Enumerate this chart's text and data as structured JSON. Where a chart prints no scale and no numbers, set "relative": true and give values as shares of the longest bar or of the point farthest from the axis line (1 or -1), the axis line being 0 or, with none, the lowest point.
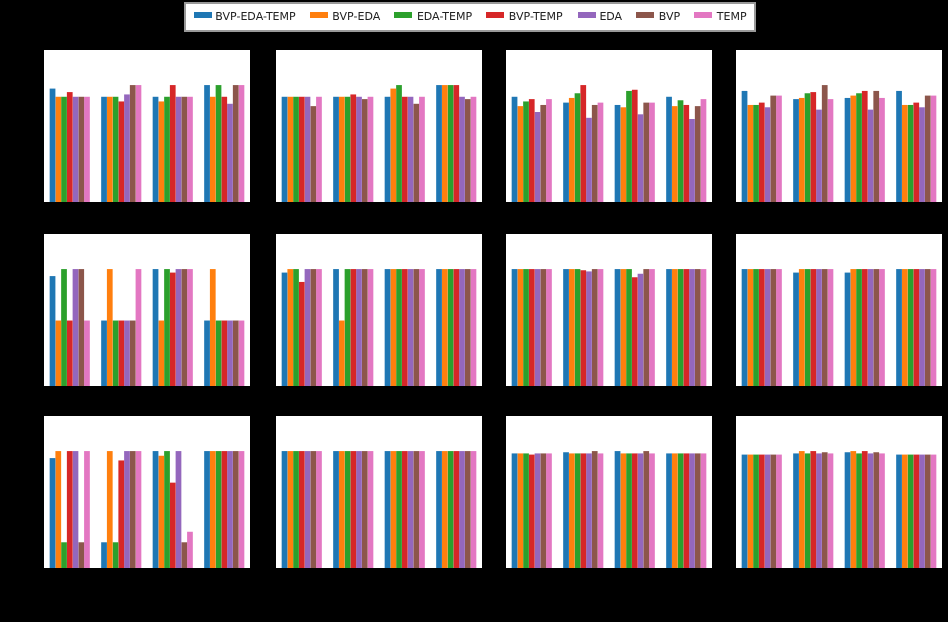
{
  "chart_data": [
    {
      "type": "bar",
      "relative": true,
      "legend": "top",
      "categories": [
        null,
        null,
        null,
        null
      ],
      "series": [
        {
          "name": "BVP-EDA-TEMP",
          "color": "#1f77b4",
          "values": [
            0.97,
            0.9,
            0.9,
            1
          ]
        },
        {
          "name": "BVP-EDA",
          "color": "#ff7f0e",
          "values": [
            0.9,
            0.9,
            0.86,
            0.9
          ]
        },
        {
          "name": "EDA-TEMP",
          "color": "#2ca02c",
          "values": [
            0.9,
            0.9,
            0.9,
            1
          ]
        },
        {
          "name": "BVP-TEMP",
          "color": "#d62728",
          "values": [
            0.94,
            0.86,
            1,
            0.9
          ]
        },
        {
          "name": "EDA",
          "color": "#9467bd",
          "values": [
            0.9,
            0.92,
            0.9,
            0.84
          ]
        },
        {
          "name": "BVP",
          "color": "#8c564b",
          "values": [
            0.9,
            1,
            0.9,
            1
          ]
        },
        {
          "name": "TEMP",
          "color": "#e377c2",
          "values": [
            0.9,
            1,
            0.9,
            1
          ]
        }
      ]
    },
    {
      "type": "bar",
      "relative": true,
      "categories": [
        null,
        null,
        null,
        null
      ],
      "series": [
        {
          "color": "#1f77b4",
          "values": [
            0.9,
            0.9,
            0.9,
            1
          ]
        },
        {
          "color": "#ff7f0e",
          "values": [
            0.9,
            0.9,
            0.97,
            1
          ]
        },
        {
          "color": "#2ca02c",
          "values": [
            0.9,
            0.9,
            1,
            1
          ]
        },
        {
          "color": "#d62728",
          "values": [
            0.9,
            0.92,
            0.9,
            1
          ]
        },
        {
          "color": "#9467bd",
          "values": [
            0.9,
            0.9,
            0.9,
            0.9
          ]
        },
        {
          "color": "#8c564b",
          "values": [
            0.82,
            0.88,
            0.84,
            0.88
          ]
        },
        {
          "color": "#e377c2",
          "values": [
            0.9,
            0.9,
            0.9,
            0.9
          ]
        }
      ]
    },
    {
      "type": "bar",
      "relative": true,
      "categories": [
        null,
        null,
        null,
        null
      ],
      "series": [
        {
          "color": "#1f77b4",
          "values": [
            0.9,
            0.85,
            0.83,
            0.9
          ]
        },
        {
          "color": "#ff7f0e",
          "values": [
            0.82,
            0.89,
            0.81,
            0.82
          ]
        },
        {
          "color": "#2ca02c",
          "values": [
            0.86,
            0.93,
            0.95,
            0.87
          ]
        },
        {
          "color": "#d62728",
          "values": [
            0.88,
            1,
            0.96,
            0.83
          ]
        },
        {
          "color": "#9467bd",
          "values": [
            0.77,
            0.72,
            0.75,
            0.71
          ]
        },
        {
          "color": "#8c564b",
          "values": [
            0.83,
            0.83,
            0.85,
            0.82
          ]
        },
        {
          "color": "#e377c2",
          "values": [
            0.88,
            0.85,
            0.85,
            0.88
          ]
        }
      ]
    },
    {
      "type": "bar",
      "relative": true,
      "categories": [
        null,
        null,
        null,
        null
      ],
      "series": [
        {
          "color": "#1f77b4",
          "values": [
            0.95,
            0.88,
            0.89,
            0.95
          ]
        },
        {
          "color": "#ff7f0e",
          "values": [
            0.83,
            0.89,
            0.91,
            0.83
          ]
        },
        {
          "color": "#2ca02c",
          "values": [
            0.83,
            0.93,
            0.93,
            0.83
          ]
        },
        {
          "color": "#d62728",
          "values": [
            0.85,
            0.94,
            0.95,
            0.85
          ]
        },
        {
          "color": "#9467bd",
          "values": [
            0.81,
            0.79,
            0.79,
            0.81
          ]
        },
        {
          "color": "#8c564b",
          "values": [
            0.91,
            1,
            0.95,
            0.91
          ]
        },
        {
          "color": "#e377c2",
          "values": [
            0.91,
            0.88,
            0.89,
            0.91
          ]
        }
      ]
    },
    {
      "type": "bar",
      "relative": true,
      "categories": [
        null,
        null,
        null,
        null
      ],
      "series": [
        {
          "color": "#1f77b4",
          "values": [
            0.94,
            0.56,
            1,
            0.56
          ]
        },
        {
          "color": "#ff7f0e",
          "values": [
            0.56,
            1,
            0.56,
            1
          ]
        },
        {
          "color": "#2ca02c",
          "values": [
            1,
            0.56,
            1,
            0.56
          ]
        },
        {
          "color": "#d62728",
          "values": [
            0.56,
            0.56,
            0.97,
            0.56
          ]
        },
        {
          "color": "#9467bd",
          "values": [
            1,
            0.56,
            1,
            0.56
          ]
        },
        {
          "color": "#8c564b",
          "values": [
            1,
            0.56,
            1,
            0.56
          ]
        },
        {
          "color": "#e377c2",
          "values": [
            0.56,
            1,
            1,
            0.56
          ]
        }
      ]
    },
    {
      "type": "bar",
      "relative": true,
      "categories": [
        null,
        null,
        null,
        null
      ],
      "series": [
        {
          "color": "#1f77b4",
          "values": [
            0.97,
            1,
            1,
            1
          ]
        },
        {
          "color": "#ff7f0e",
          "values": [
            1,
            0.56,
            1,
            1
          ]
        },
        {
          "color": "#2ca02c",
          "values": [
            1,
            1,
            1,
            1
          ]
        },
        {
          "color": "#d62728",
          "values": [
            0.89,
            1,
            1,
            1
          ]
        },
        {
          "color": "#9467bd",
          "values": [
            1,
            1,
            1,
            1
          ]
        },
        {
          "color": "#8c564b",
          "values": [
            1,
            1,
            1,
            1
          ]
        },
        {
          "color": "#e377c2",
          "values": [
            1,
            1,
            1,
            1
          ]
        }
      ]
    },
    {
      "type": "bar",
      "relative": true,
      "categories": [
        null,
        null,
        null,
        null
      ],
      "series": [
        {
          "color": "#1f77b4",
          "values": [
            1,
            1,
            1,
            1
          ]
        },
        {
          "color": "#ff7f0e",
          "values": [
            1,
            1,
            1,
            1
          ]
        },
        {
          "color": "#2ca02c",
          "values": [
            1,
            1,
            1,
            1
          ]
        },
        {
          "color": "#d62728",
          "values": [
            1,
            0.99,
            0.93,
            1
          ]
        },
        {
          "color": "#9467bd",
          "values": [
            1,
            0.98,
            0.96,
            1
          ]
        },
        {
          "color": "#8c564b",
          "values": [
            1,
            1,
            1,
            1
          ]
        },
        {
          "color": "#e377c2",
          "values": [
            1,
            1,
            1,
            1
          ]
        }
      ]
    },
    {
      "type": "bar",
      "relative": true,
      "categories": [
        null,
        null,
        null,
        null
      ],
      "series": [
        {
          "color": "#1f77b4",
          "values": [
            1,
            0.97,
            0.97,
            1
          ]
        },
        {
          "color": "#ff7f0e",
          "values": [
            1,
            1,
            1,
            1
          ]
        },
        {
          "color": "#2ca02c",
          "values": [
            1,
            1,
            1,
            1
          ]
        },
        {
          "color": "#d62728",
          "values": [
            1,
            1,
            1,
            1
          ]
        },
        {
          "color": "#9467bd",
          "values": [
            1,
            1,
            1,
            1
          ]
        },
        {
          "color": "#8c564b",
          "values": [
            1,
            1,
            1,
            1
          ]
        },
        {
          "color": "#e377c2",
          "values": [
            1,
            1,
            1,
            1
          ]
        }
      ]
    },
    {
      "type": "bar",
      "relative": true,
      "categories": [
        null,
        null,
        null,
        null
      ],
      "series": [
        {
          "color": "#1f77b4",
          "values": [
            0.94,
            0.22,
            1,
            1
          ]
        },
        {
          "color": "#ff7f0e",
          "values": [
            1,
            1,
            0.96,
            1
          ]
        },
        {
          "color": "#2ca02c",
          "values": [
            0.22,
            0.22,
            1,
            1
          ]
        },
        {
          "color": "#d62728",
          "values": [
            1,
            0.92,
            0.73,
            1
          ]
        },
        {
          "color": "#9467bd",
          "values": [
            1,
            1,
            1,
            1
          ]
        },
        {
          "color": "#8c564b",
          "values": [
            0.22,
            1,
            0.22,
            1
          ]
        },
        {
          "color": "#e377c2",
          "values": [
            1,
            1,
            0.31,
            1
          ]
        }
      ]
    },
    {
      "type": "bar",
      "relative": true,
      "categories": [
        null,
        null,
        null,
        null
      ],
      "series": [
        {
          "color": "#1f77b4",
          "values": [
            1,
            1,
            1,
            1
          ]
        },
        {
          "color": "#ff7f0e",
          "values": [
            1,
            1,
            1,
            1
          ]
        },
        {
          "color": "#2ca02c",
          "values": [
            1,
            1,
            1,
            1
          ]
        },
        {
          "color": "#d62728",
          "values": [
            1,
            1,
            1,
            1
          ]
        },
        {
          "color": "#9467bd",
          "values": [
            1,
            1,
            1,
            1
          ]
        },
        {
          "color": "#8c564b",
          "values": [
            1,
            1,
            1,
            1
          ]
        },
        {
          "color": "#e377c2",
          "values": [
            1,
            1,
            1,
            1
          ]
        }
      ]
    },
    {
      "type": "bar",
      "relative": true,
      "categories": [
        null,
        null,
        null,
        null
      ],
      "series": [
        {
          "color": "#1f77b4",
          "values": [
            0.98,
            0.99,
            1,
            0.98
          ]
        },
        {
          "color": "#ff7f0e",
          "values": [
            0.98,
            0.98,
            0.98,
            0.98
          ]
        },
        {
          "color": "#2ca02c",
          "values": [
            0.98,
            0.98,
            0.98,
            0.98
          ]
        },
        {
          "color": "#d62728",
          "values": [
            0.97,
            0.98,
            0.98,
            0.98
          ]
        },
        {
          "color": "#9467bd",
          "values": [
            0.98,
            0.98,
            0.98,
            0.98
          ]
        },
        {
          "color": "#8c564b",
          "values": [
            0.98,
            1,
            1,
            0.98
          ]
        },
        {
          "color": "#e377c2",
          "values": [
            0.98,
            0.98,
            0.98,
            0.98
          ]
        }
      ]
    },
    {
      "type": "bar",
      "relative": true,
      "categories": [
        null,
        null,
        null,
        null
      ],
      "series": [
        {
          "color": "#1f77b4",
          "values": [
            0.97,
            0.98,
            0.99,
            0.97
          ]
        },
        {
          "color": "#ff7f0e",
          "values": [
            0.97,
            1,
            1,
            0.97
          ]
        },
        {
          "color": "#2ca02c",
          "values": [
            0.97,
            0.98,
            0.98,
            0.97
          ]
        },
        {
          "color": "#d62728",
          "values": [
            0.97,
            1,
            1,
            0.97
          ]
        },
        {
          "color": "#9467bd",
          "values": [
            0.97,
            0.98,
            0.98,
            0.97
          ]
        },
        {
          "color": "#8c564b",
          "values": [
            0.97,
            0.99,
            0.99,
            0.97
          ]
        },
        {
          "color": "#e377c2",
          "values": [
            0.97,
            0.98,
            0.98,
            0.97
          ]
        }
      ]
    }
  ]
}
